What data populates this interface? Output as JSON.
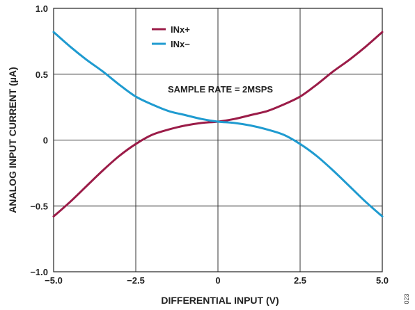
{
  "chart_data": {
    "type": "line",
    "xlabel": "DIFFERENTIAL INPUT (V)",
    "ylabel": "ANALOG INPUT CURRENT (µA)",
    "xlim": [
      -5.0,
      5.0
    ],
    "ylim": [
      -1.0,
      1.0
    ],
    "xticks": [
      -5.0,
      -2.5,
      0,
      2.5,
      5.0
    ],
    "xtick_labels": [
      "−5.0",
      "−2.5",
      "0",
      "2.5",
      "5.0"
    ],
    "yticks": [
      1.0,
      0.5,
      0,
      -0.5,
      -1.0
    ],
    "ytick_labels": [
      "1.0",
      "0.5",
      "0",
      "−0.5",
      "−1.0"
    ],
    "grid": true,
    "legend_placement": "top-center",
    "annotation": "SAMPLE RATE = 2MSPS",
    "figure_id": "023",
    "series": [
      {
        "name": "INx+",
        "color": "#9b1c48",
        "x": [
          -5.0,
          -4.5,
          -4.0,
          -3.5,
          -3.0,
          -2.5,
          -2.0,
          -1.5,
          -1.0,
          -0.5,
          0.0,
          0.5,
          1.0,
          1.5,
          2.0,
          2.5,
          3.0,
          3.5,
          4.0,
          4.5,
          5.0
        ],
        "y": [
          -0.58,
          -0.47,
          -0.35,
          -0.23,
          -0.12,
          -0.03,
          0.04,
          0.08,
          0.11,
          0.13,
          0.14,
          0.16,
          0.19,
          0.22,
          0.27,
          0.33,
          0.42,
          0.52,
          0.61,
          0.71,
          0.82
        ]
      },
      {
        "name": "INx−",
        "color": "#1f9bd0",
        "x": [
          -5.0,
          -4.5,
          -4.0,
          -3.5,
          -3.0,
          -2.5,
          -2.0,
          -1.5,
          -1.0,
          -0.5,
          0.0,
          0.5,
          1.0,
          1.5,
          2.0,
          2.5,
          3.0,
          3.5,
          4.0,
          4.5,
          5.0
        ],
        "y": [
          0.82,
          0.71,
          0.61,
          0.52,
          0.42,
          0.33,
          0.27,
          0.22,
          0.19,
          0.16,
          0.14,
          0.13,
          0.11,
          0.08,
          0.04,
          -0.03,
          -0.12,
          -0.23,
          -0.35,
          -0.47,
          -0.58
        ]
      }
    ]
  }
}
